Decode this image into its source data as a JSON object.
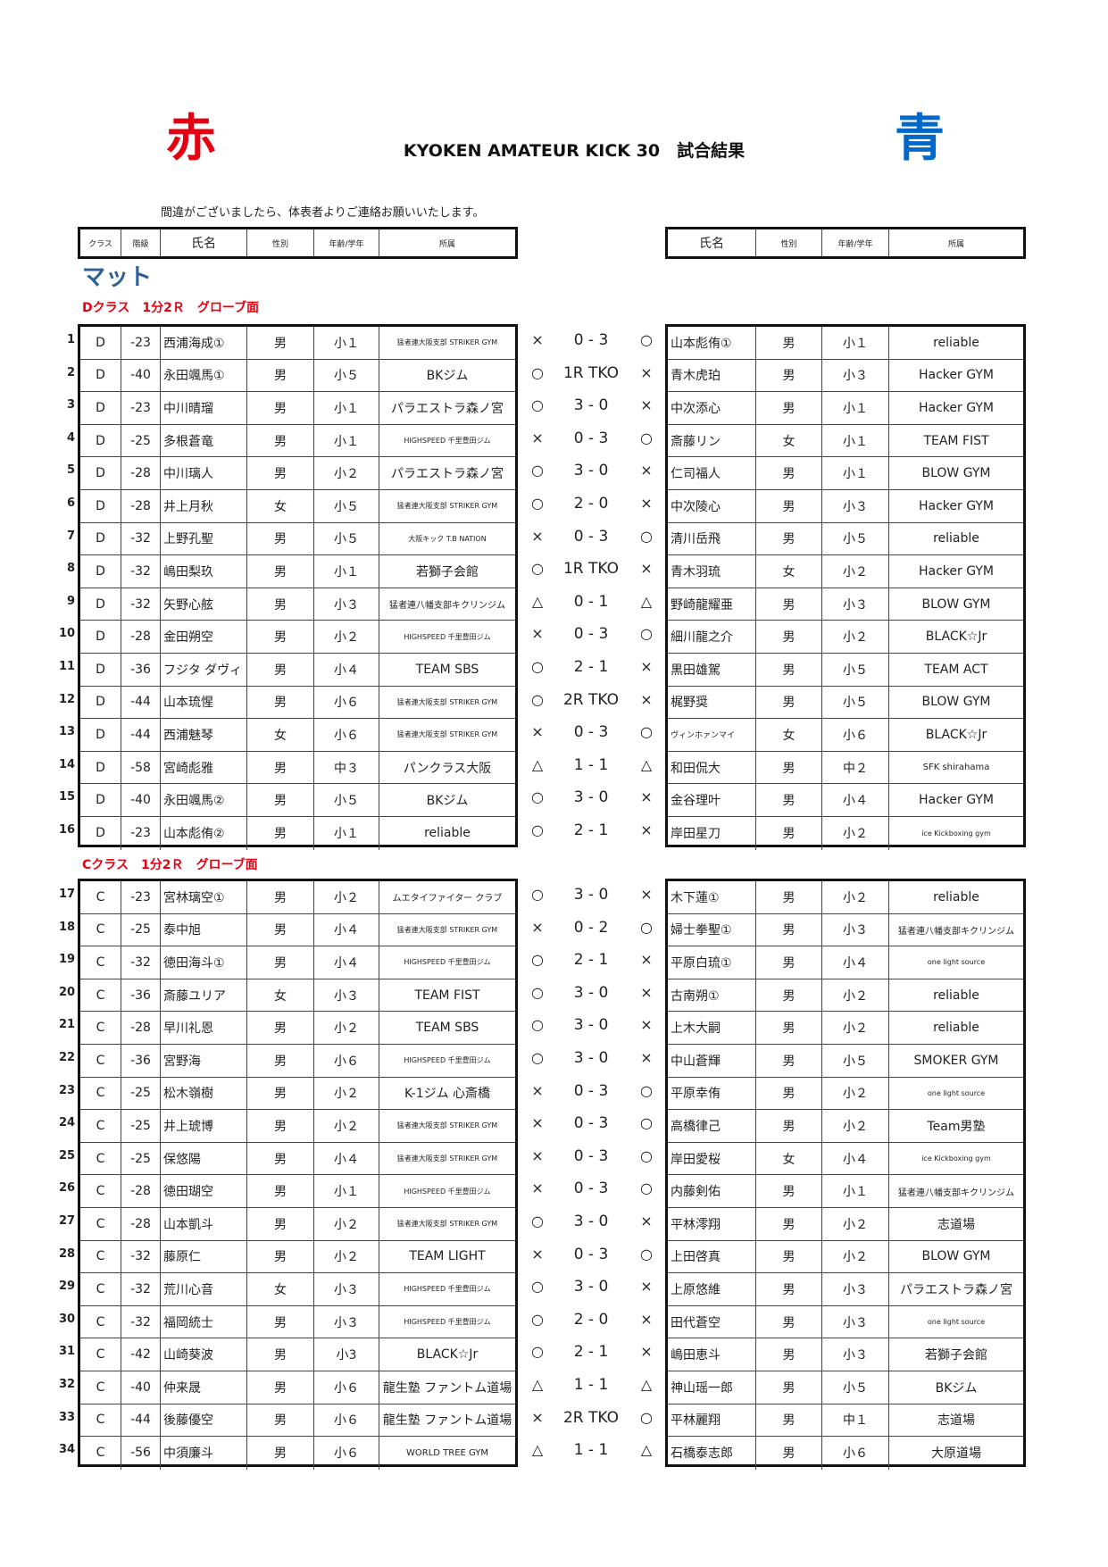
{
  "header": {
    "red_label": "赤",
    "blue_label": "青",
    "title": "KYOKEN AMATEUR KICK 30　試合結果",
    "notice": "間違がございましたら、体表者よりご連絡お願いいたします。",
    "colors": {
      "red": "#e60012",
      "blue": "#0068c8",
      "mat": "#2e5f96"
    }
  },
  "columns": {
    "left": [
      "クラス",
      "階級",
      "氏名",
      "性別",
      "年齢/学年",
      "所属"
    ],
    "right": [
      "氏名",
      "性別",
      "年齢/学年",
      "所属"
    ]
  },
  "venue": "マット",
  "sections": [
    {
      "label": "Dクラス　1分2Ｒ　グローブ面",
      "rows": [
        {
          "no": "1",
          "cls": "D",
          "wt": "-23",
          "red": [
            "西浦海成①",
            "男",
            "小１",
            "猛者連大阪支部 STRIKER GYM"
          ],
          "rm": "×",
          "score": "0 - 3",
          "bm": "○",
          "blue": [
            "山本彪侑①",
            "男",
            "小１",
            "reliable"
          ]
        },
        {
          "no": "2",
          "cls": "D",
          "wt": "-40",
          "red": [
            "永田颯馬①",
            "男",
            "小５",
            "BKジム"
          ],
          "rm": "○",
          "score": "1R TKO",
          "bm": "×",
          "blue": [
            "青木虎珀",
            "男",
            "小３",
            "Hacker GYM"
          ]
        },
        {
          "no": "3",
          "cls": "D",
          "wt": "-23",
          "red": [
            "中川晴瑠",
            "男",
            "小１",
            "パラエストラ森ノ宮"
          ],
          "rm": "○",
          "score": "3 - 0",
          "bm": "×",
          "blue": [
            "中次添心",
            "男",
            "小１",
            "Hacker GYM"
          ]
        },
        {
          "no": "4",
          "cls": "D",
          "wt": "-25",
          "red": [
            "多根蒼竜",
            "男",
            "小１",
            "HIGHSPEED 千里豊田ジム"
          ],
          "rm": "×",
          "score": "0 - 3",
          "bm": "○",
          "blue": [
            "斎藤リン",
            "女",
            "小１",
            "TEAM FIST"
          ]
        },
        {
          "no": "5",
          "cls": "D",
          "wt": "-28",
          "red": [
            "中川璃人",
            "男",
            "小２",
            "パラエストラ森ノ宮"
          ],
          "rm": "○",
          "score": "3 - 0",
          "bm": "×",
          "blue": [
            "仁司福人",
            "男",
            "小１",
            "BLOW GYM"
          ]
        },
        {
          "no": "6",
          "cls": "D",
          "wt": "-28",
          "red": [
            "井上月秋",
            "女",
            "小５",
            "猛者連大阪支部 STRIKER GYM"
          ],
          "rm": "○",
          "score": "2 - 0",
          "bm": "×",
          "blue": [
            "中次陵心",
            "男",
            "小３",
            "Hacker GYM"
          ]
        },
        {
          "no": "7",
          "cls": "D",
          "wt": "-32",
          "red": [
            "上野孔聖",
            "男",
            "小５",
            "大阪キック T.B NATION"
          ],
          "rm": "×",
          "score": "0 - 3",
          "bm": "○",
          "blue": [
            "清川岳飛",
            "男",
            "小５",
            "reliable"
          ]
        },
        {
          "no": "8",
          "cls": "D",
          "wt": "-32",
          "red": [
            "嶋田梨玖",
            "男",
            "小１",
            "若獅子会館"
          ],
          "rm": "○",
          "score": "1R TKO",
          "bm": "×",
          "blue": [
            "青木羽琉",
            "女",
            "小２",
            "Hacker GYM"
          ]
        },
        {
          "no": "9",
          "cls": "D",
          "wt": "-32",
          "red": [
            "矢野心舷",
            "男",
            "小３",
            "猛者連八幡支部キクリンジム"
          ],
          "rm": "△",
          "score": "0 - 1",
          "bm": "△",
          "blue": [
            "野崎龍耀亜",
            "男",
            "小３",
            "BLOW GYM"
          ]
        },
        {
          "no": "10",
          "cls": "D",
          "wt": "-28",
          "red": [
            "金田朔空",
            "男",
            "小２",
            "HIGHSPEED 千里豊田ジム"
          ],
          "rm": "×",
          "score": "0 - 3",
          "bm": "○",
          "blue": [
            "細川龍之介",
            "男",
            "小２",
            "BLACK☆Jr"
          ]
        },
        {
          "no": "11",
          "cls": "D",
          "wt": "-36",
          "red": [
            "フジタ ダヴィ",
            "男",
            "小４",
            "TEAM SBS"
          ],
          "rm": "○",
          "score": "2 - 1",
          "bm": "×",
          "blue": [
            "黒田雄駕",
            "男",
            "小５",
            "TEAM ACT"
          ]
        },
        {
          "no": "12",
          "cls": "D",
          "wt": "-44",
          "red": [
            "山本琉惺",
            "男",
            "小６",
            "猛者連大阪支部 STRIKER GYM"
          ],
          "rm": "○",
          "score": "2R TKO",
          "bm": "×",
          "blue": [
            "梶野奨",
            "男",
            "小５",
            "BLOW GYM"
          ]
        },
        {
          "no": "13",
          "cls": "D",
          "wt": "-44",
          "red": [
            "西浦魅琴",
            "女",
            "小６",
            "猛者連大阪支部 STRIKER GYM"
          ],
          "rm": "×",
          "score": "0 - 3",
          "bm": "○",
          "blue": [
            "ヴィンホァンマイ",
            "女",
            "小６",
            "BLACK☆Jr"
          ]
        },
        {
          "no": "14",
          "cls": "D",
          "wt": "-58",
          "red": [
            "宮崎彪雅",
            "男",
            "中３",
            "パンクラス大阪"
          ],
          "rm": "△",
          "score": "1 - 1",
          "bm": "△",
          "blue": [
            "和田侃大",
            "男",
            "中２",
            "SFK shirahama"
          ]
        },
        {
          "no": "15",
          "cls": "D",
          "wt": "-40",
          "red": [
            "永田颯馬②",
            "男",
            "小５",
            "BKジム"
          ],
          "rm": "○",
          "score": "3 - 0",
          "bm": "×",
          "blue": [
            "金谷理叶",
            "男",
            "小４",
            "Hacker GYM"
          ]
        },
        {
          "no": "16",
          "cls": "D",
          "wt": "-23",
          "red": [
            "山本彪侑②",
            "男",
            "小１",
            "reliable"
          ],
          "rm": "○",
          "score": "2 - 1",
          "bm": "×",
          "blue": [
            "岸田星刀",
            "男",
            "小２",
            "ice Kickboxing gym"
          ]
        }
      ]
    },
    {
      "label": "Cクラス　1分2Ｒ　グローブ面",
      "rows": [
        {
          "no": "17",
          "cls": "C",
          "wt": "-23",
          "red": [
            "宮林璃空①",
            "男",
            "小２",
            "ムエタイファイター クラブ"
          ],
          "rm": "○",
          "score": "3 - 0",
          "bm": "×",
          "blue": [
            "木下蓮①",
            "男",
            "小２",
            "reliable"
          ]
        },
        {
          "no": "18",
          "cls": "C",
          "wt": "-25",
          "red": [
            "泰中旭",
            "男",
            "小４",
            "猛者連大阪支部 STRIKER GYM"
          ],
          "rm": "×",
          "score": "0 - 2",
          "bm": "○",
          "blue": [
            "婦士拳聖①",
            "男",
            "小３",
            "猛者連八幡支部キクリンジム"
          ]
        },
        {
          "no": "19",
          "cls": "C",
          "wt": "-32",
          "red": [
            "徳田海斗①",
            "男",
            "小４",
            "HIGHSPEED 千里豊田ジム"
          ],
          "rm": "○",
          "score": "2 - 1",
          "bm": "×",
          "blue": [
            "平原白琉①",
            "男",
            "小４",
            "one light source"
          ]
        },
        {
          "no": "20",
          "cls": "C",
          "wt": "-36",
          "red": [
            "斎藤ユリア",
            "女",
            "小３",
            "TEAM FIST"
          ],
          "rm": "○",
          "score": "3 - 0",
          "bm": "×",
          "blue": [
            "古南朔①",
            "男",
            "小２",
            "reliable"
          ]
        },
        {
          "no": "21",
          "cls": "C",
          "wt": "-28",
          "red": [
            "早川礼恩",
            "男",
            "小２",
            "TEAM SBS"
          ],
          "rm": "○",
          "score": "3 - 0",
          "bm": "×",
          "blue": [
            "上木大嗣",
            "男",
            "小２",
            "reliable"
          ]
        },
        {
          "no": "22",
          "cls": "C",
          "wt": "-36",
          "red": [
            "宮野海",
            "男",
            "小６",
            "HIGHSPEED 千里豊田ジム"
          ],
          "rm": "○",
          "score": "3 - 0",
          "bm": "×",
          "blue": [
            "中山蒼輝",
            "男",
            "小５",
            "SMOKER GYM"
          ]
        },
        {
          "no": "23",
          "cls": "C",
          "wt": "-25",
          "red": [
            "松木嶺樹",
            "男",
            "小２",
            "K-1ジム 心斎橋"
          ],
          "rm": "×",
          "score": "0 - 3",
          "bm": "○",
          "blue": [
            "平原幸侑",
            "男",
            "小２",
            "one light source"
          ]
        },
        {
          "no": "24",
          "cls": "C",
          "wt": "-25",
          "red": [
            "井上琥博",
            "男",
            "小２",
            "猛者連大阪支部 STRIKER GYM"
          ],
          "rm": "×",
          "score": "0 - 3",
          "bm": "○",
          "blue": [
            "高橋律己",
            "男",
            "小２",
            "Team男塾"
          ]
        },
        {
          "no": "25",
          "cls": "C",
          "wt": "-25",
          "red": [
            "保悠陽",
            "男",
            "小４",
            "猛者連大阪支部 STRIKER GYM"
          ],
          "rm": "×",
          "score": "0 - 3",
          "bm": "○",
          "blue": [
            "岸田愛桜",
            "女",
            "小４",
            "ice Kickboxing gym"
          ]
        },
        {
          "no": "26",
          "cls": "C",
          "wt": "-28",
          "red": [
            "徳田瑚空",
            "男",
            "小１",
            "HIGHSPEED 千里豊田ジム"
          ],
          "rm": "×",
          "score": "0 - 3",
          "bm": "○",
          "blue": [
            "内藤剣佑",
            "男",
            "小１",
            "猛者連八幡支部キクリンジム"
          ]
        },
        {
          "no": "27",
          "cls": "C",
          "wt": "-28",
          "red": [
            "山本凱斗",
            "男",
            "小２",
            "猛者連大阪支部 STRIKER GYM"
          ],
          "rm": "○",
          "score": "3 - 0",
          "bm": "×",
          "blue": [
            "平林澪翔",
            "男",
            "小２",
            "志道場"
          ]
        },
        {
          "no": "28",
          "cls": "C",
          "wt": "-32",
          "red": [
            "藤原仁",
            "男",
            "小２",
            "TEAM LIGHT"
          ],
          "rm": "×",
          "score": "0 - 3",
          "bm": "○",
          "blue": [
            "上田啓真",
            "男",
            "小２",
            "BLOW GYM"
          ]
        },
        {
          "no": "29",
          "cls": "C",
          "wt": "-32",
          "red": [
            "荒川心音",
            "女",
            "小３",
            "HIGHSPEED 千里豊田ジム"
          ],
          "rm": "○",
          "score": "3 - 0",
          "bm": "×",
          "blue": [
            "上原悠維",
            "男",
            "小３",
            "パラエストラ森ノ宮"
          ]
        },
        {
          "no": "30",
          "cls": "C",
          "wt": "-32",
          "red": [
            "福岡統士",
            "男",
            "小３",
            "HIGHSPEED 千里豊田ジム"
          ],
          "rm": "○",
          "score": "2 - 0",
          "bm": "×",
          "blue": [
            "田代蒼空",
            "男",
            "小３",
            "one light source"
          ]
        },
        {
          "no": "31",
          "cls": "C",
          "wt": "-42",
          "red": [
            "山崎葵波",
            "男",
            "小3",
            "BLACK☆Jr"
          ],
          "rm": "○",
          "score": "2 - 1",
          "bm": "×",
          "blue": [
            "嶋田恵斗",
            "男",
            "小３",
            "若獅子会館"
          ]
        },
        {
          "no": "32",
          "cls": "C",
          "wt": "-40",
          "red": [
            "仲来晟",
            "男",
            "小６",
            "龍生塾 ファントム道場"
          ],
          "rm": "△",
          "score": "1 - 1",
          "bm": "△",
          "blue": [
            "神山瑶一郎",
            "男",
            "小５",
            "BKジム"
          ]
        },
        {
          "no": "33",
          "cls": "C",
          "wt": "-44",
          "red": [
            "後藤優空",
            "男",
            "小６",
            "龍生塾 ファントム道場"
          ],
          "rm": "×",
          "score": "2R TKO",
          "bm": "○",
          "blue": [
            "平林麗翔",
            "男",
            "中１",
            "志道場"
          ]
        },
        {
          "no": "34",
          "cls": "C",
          "wt": "-56",
          "red": [
            "中須廉斗",
            "男",
            "小６",
            "WORLD TREE GYM"
          ],
          "rm": "△",
          "score": "1 - 1",
          "bm": "△",
          "blue": [
            "石橋泰志郎",
            "男",
            "小６",
            "大原道場"
          ]
        }
      ]
    }
  ]
}
